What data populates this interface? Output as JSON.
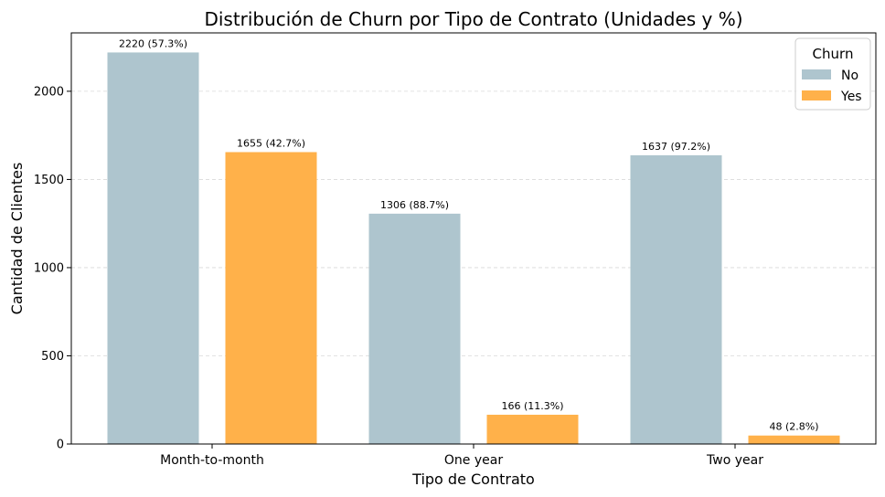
{
  "chart_data": {
    "type": "bar",
    "title": "Distribución de Churn por Tipo de Contrato (Unidades y %)",
    "xlabel": "Tipo de Contrato",
    "ylabel": "Cantidad de Clientes",
    "categories": [
      "Month-to-month",
      "One year",
      "Two year"
    ],
    "series": [
      {
        "name": "No",
        "color": "#aec5ce",
        "values": [
          2220,
          1306,
          1637
        ],
        "labels": [
          "2220 (57.3%)",
          "1306 (88.7%)",
          "1637 (97.2%)"
        ]
      },
      {
        "name": "Yes",
        "color": "#ffb14a",
        "values": [
          1655,
          166,
          48
        ],
        "labels": [
          "1655 (42.7%)",
          "166 (11.3%)",
          "48 (2.8%)"
        ]
      }
    ],
    "ylim": [
      0,
      2331
    ],
    "yticks": [
      0,
      500,
      1000,
      1500,
      2000
    ],
    "grid": "horizontal-dashed",
    "legend": {
      "title": "Churn",
      "position": "top-right"
    }
  }
}
